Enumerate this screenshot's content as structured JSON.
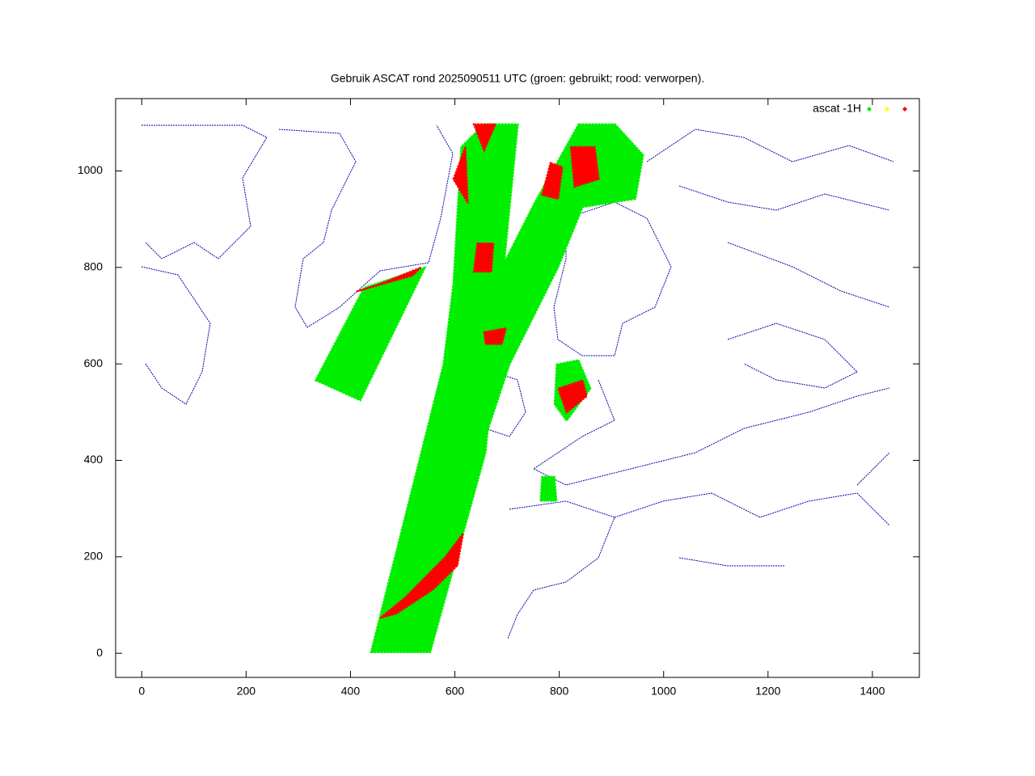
{
  "chart_data": {
    "type": "scatter",
    "title": "Gebruik ASCAT rond 2025090511 UTC (groen: gebruikt; rood: verworpen).",
    "xlim": [
      -50,
      1490
    ],
    "ylim": [
      -50,
      1150
    ],
    "xticks": [
      0,
      200,
      400,
      600,
      800,
      1000,
      1200,
      1400
    ],
    "yticks": [
      0,
      200,
      400,
      600,
      800,
      1000
    ],
    "legend": "top-right",
    "series": [
      {
        "name": "ascat -1H",
        "color": "#00ee00",
        "regions": [
          {
            "x": [
              439,
              553,
              659,
              721,
              656,
              612,
              597,
              578
            ],
            "y": [
              2,
              2,
              416,
              1097,
              1097,
              1050,
              766,
              599
            ]
          },
          {
            "x": [
              837,
              907,
              961,
              946,
              845,
              798,
              705,
              659,
              643,
              690,
              752
            ],
            "y": [
              1097,
              1097,
              1033,
              942,
              925,
              800,
              599,
              449,
              599,
              800,
              933
            ]
          },
          {
            "x": [
              333,
              419,
              543,
              426
            ],
            "y": [
              566,
              524,
              800,
              758
            ]
          },
          {
            "x": [
              795,
              837,
              860,
              814,
              791
            ],
            "y": [
              599,
              608,
              549,
              482,
              516
            ]
          },
          {
            "x": [
              764,
              795,
              791,
              767
            ],
            "y": [
              316,
              316,
              366,
              366
            ]
          }
        ]
      },
      {
        "color": "#ffff00",
        "regions": []
      },
      {
        "color": "#ff0000",
        "regions": [
          {
            "x": [
              457,
              504,
              581,
              616,
              605,
              558,
              488
            ],
            "y": [
              73,
              115,
              199,
              249,
              182,
              132,
              82
            ]
          },
          {
            "x": [
              636,
              678,
              656
            ],
            "y": [
              1097,
              1097,
              1042
            ]
          },
          {
            "x": [
              620,
              597,
              625
            ],
            "y": [
              1050,
              983,
              933
            ]
          },
          {
            "x": [
              643,
              674,
              670,
              636
            ],
            "y": [
              850,
              850,
              791,
              791
            ]
          },
          {
            "x": [
              656,
              698,
              690,
              659
            ],
            "y": [
              666,
              674,
              641,
              641
            ]
          },
          {
            "x": [
              822,
              868,
              876,
              829
            ],
            "y": [
              1050,
              1050,
              983,
              967
            ]
          },
          {
            "x": [
              783,
              806,
              798,
              767
            ],
            "y": [
              1017,
              1008,
              942,
              950
            ]
          },
          {
            "x": [
              411,
              519,
              535,
              457
            ],
            "y": [
              750,
              783,
              800,
              766
            ]
          },
          {
            "x": [
              814,
              798,
              845,
              853
            ],
            "y": [
              499,
              549,
              566,
              533
            ]
          }
        ]
      }
    ]
  }
}
